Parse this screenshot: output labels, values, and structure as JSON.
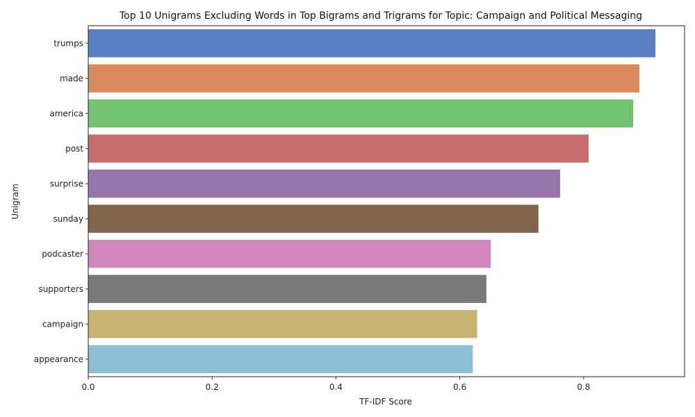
{
  "chart_data": {
    "type": "bar",
    "orientation": "horizontal",
    "title": "Top 10 Unigrams Excluding Words in Top Bigrams and Trigrams for Topic: Campaign and Political Messaging",
    "xlabel": "TF-IDF Score",
    "ylabel": "Unigram",
    "xlim": [
      0,
      0.963
    ],
    "xticks": [
      0.0,
      0.2,
      0.4,
      0.6,
      0.8
    ],
    "xtick_labels": [
      "0.0",
      "0.2",
      "0.4",
      "0.6",
      "0.8"
    ],
    "grid": false,
    "legend": "none",
    "categories": [
      "trumps",
      "made",
      "america",
      "post",
      "surprise",
      "sunday",
      "podcaster",
      "supporters",
      "campaign",
      "appearance"
    ],
    "values": [
      0.916,
      0.89,
      0.88,
      0.808,
      0.762,
      0.727,
      0.65,
      0.643,
      0.628,
      0.621
    ],
    "colors": [
      "#5a7fc2",
      "#d98b5f",
      "#73c270",
      "#c66e6e",
      "#9575ac",
      "#82644a",
      "#d288be",
      "#7a7a7a",
      "#c8b470",
      "#8dc0d5"
    ]
  }
}
